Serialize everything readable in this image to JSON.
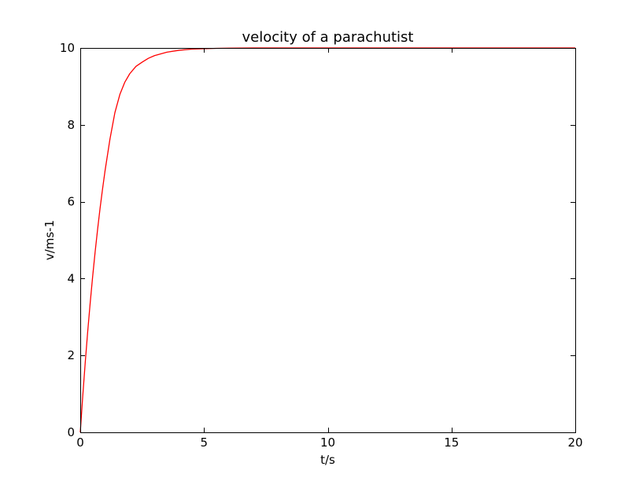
{
  "chart_data": {
    "type": "line",
    "title": "velocity of a parachutist",
    "xlabel": "t/s",
    "ylabel": "v/ms-1",
    "xlim": [
      0,
      20
    ],
    "ylim": [
      0,
      10
    ],
    "xticks": [
      0,
      5,
      10,
      15,
      20
    ],
    "yticks": [
      0,
      2,
      4,
      6,
      8,
      10
    ],
    "grid": false,
    "series": [
      {
        "color": "#ff0000",
        "x": [
          0,
          0.1,
          0.2,
          0.3,
          0.4,
          0.5,
          0.6,
          0.7,
          0.8,
          0.9,
          1.0,
          1.2,
          1.4,
          1.6,
          1.8,
          2.0,
          2.25,
          2.5,
          2.75,
          3.0,
          3.5,
          4.0,
          4.5,
          5.0,
          5.5,
          6.0,
          6.5,
          7.0,
          8.0,
          10.0,
          15.0,
          20.0
        ],
        "y": [
          0.0,
          0.94,
          1.81,
          2.62,
          3.36,
          4.05,
          4.69,
          5.28,
          5.83,
          6.33,
          6.8,
          7.63,
          8.32,
          8.79,
          9.11,
          9.33,
          9.52,
          9.63,
          9.73,
          9.8,
          9.89,
          9.94,
          9.97,
          9.98,
          9.99,
          9.995,
          9.998,
          9.999,
          10.0,
          10.0,
          10.0,
          10.0
        ]
      }
    ]
  }
}
